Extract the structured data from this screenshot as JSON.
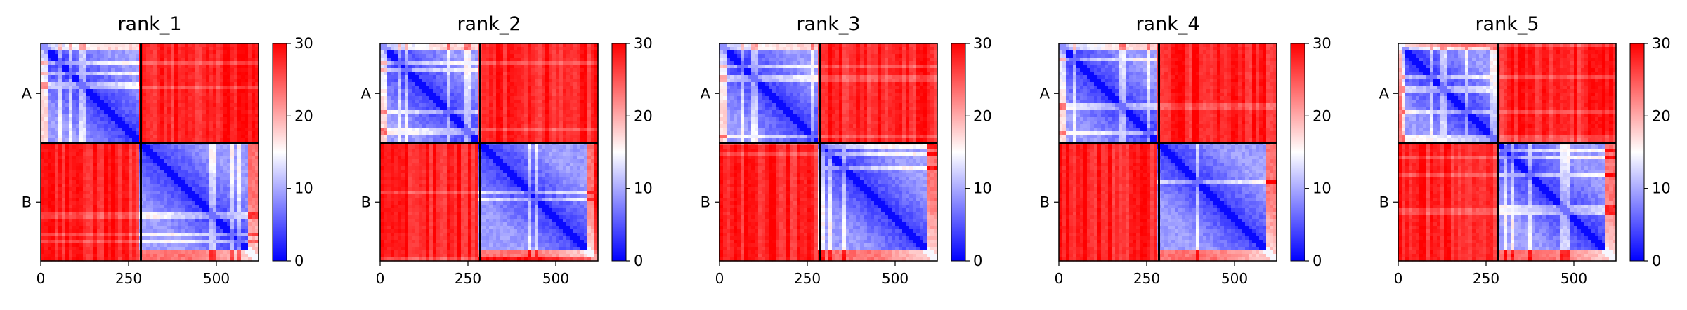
{
  "chart_data": {
    "type": "heatmap",
    "colormap": {
      "low": "#0000ff",
      "mid": "#ffffff",
      "high": "#ff0000",
      "vmin": 0,
      "vmax": 30
    },
    "chain_boundary": 285,
    "length": 620,
    "chains": [
      "A",
      "B"
    ],
    "panels": [
      {
        "title": "rank_1",
        "xticks": [
          0,
          250,
          500
        ],
        "colorbar_ticks": [
          0,
          10,
          20,
          30
        ],
        "chain_labels": [
          "A",
          "B"
        ]
      },
      {
        "title": "rank_2",
        "xticks": [
          0,
          250,
          500
        ],
        "colorbar_ticks": [
          0,
          10,
          20,
          30
        ],
        "chain_labels": [
          "A",
          "B"
        ]
      },
      {
        "title": "rank_3",
        "xticks": [
          0,
          250,
          500
        ],
        "colorbar_ticks": [
          0,
          10,
          20,
          30
        ],
        "chain_labels": [
          "A",
          "B"
        ]
      },
      {
        "title": "rank_4",
        "xticks": [
          0,
          250,
          500
        ],
        "colorbar_ticks": [
          0,
          10,
          20,
          30
        ],
        "chain_labels": [
          "A",
          "B"
        ]
      },
      {
        "title": "rank_5",
        "xticks": [
          0,
          250,
          500
        ],
        "colorbar_ticks": [
          0,
          10,
          20,
          30
        ],
        "chain_labels": [
          "A",
          "B"
        ]
      }
    ]
  }
}
